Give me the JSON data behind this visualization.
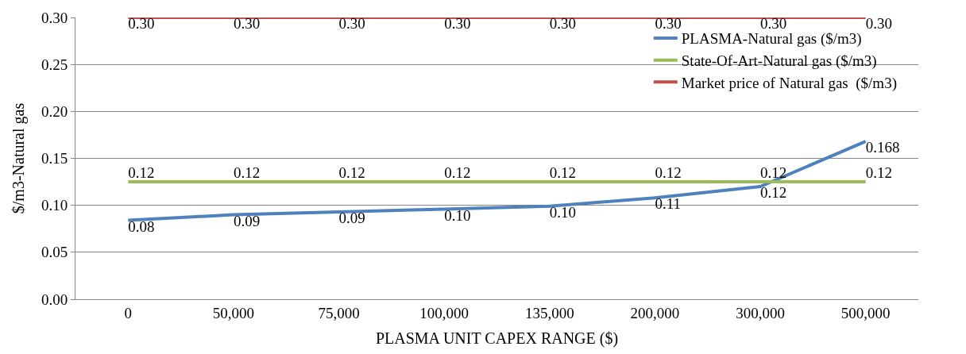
{
  "chart_data": {
    "type": "line",
    "xlabel": "PLASMA UNIT CAPEX RANGE ($)",
    "ylabel": "$/m3-Natural gas",
    "categories": [
      "0",
      "50,000",
      "75,000",
      "100,000",
      "135,000",
      "200,000",
      "300,000",
      "500,000"
    ],
    "series": [
      {
        "name": "PLASMA-Natural gas ($/m3)",
        "color": "#4f81bd",
        "values": [
          0.084,
          0.09,
          0.093,
          0.096,
          0.099,
          0.108,
          0.12,
          0.168
        ],
        "value_labels": [
          "0.08",
          "0.09",
          "0.09",
          "0.10",
          "0.10",
          "0.11",
          "0.12",
          "0.168"
        ]
      },
      {
        "name": "State-Of-Art-Natural gas ($/m3)",
        "color": "#9bbb59",
        "values": [
          0.125,
          0.125,
          0.125,
          0.125,
          0.125,
          0.125,
          0.125,
          0.125
        ],
        "value_labels": [
          "0.12",
          "0.12",
          "0.12",
          "0.12",
          "0.12",
          "0.12",
          "0.12",
          "0.12"
        ]
      },
      {
        "name": "Market price of Natural gas  ($/m3)",
        "color": "#c0504d",
        "values": [
          0.3,
          0.3,
          0.3,
          0.3,
          0.3,
          0.3,
          0.3,
          0.3
        ],
        "value_labels": [
          "0.30",
          "0.30",
          "0.30",
          "0.30",
          "0.30",
          "0.30",
          "0.30",
          "0.30"
        ]
      }
    ],
    "ylim": [
      0,
      0.3
    ],
    "yticks": [
      {
        "value": 0,
        "label": "0.00"
      },
      {
        "value": 0.05,
        "label": "0.05"
      },
      {
        "value": 0.1,
        "label": "0.10"
      },
      {
        "value": 0.15,
        "label": "0.15"
      },
      {
        "value": 0.2,
        "label": "0.20"
      },
      {
        "value": 0.25,
        "label": "0.25"
      },
      {
        "value": 0.3,
        "label": "0.30"
      }
    ],
    "grid": "y",
    "legend": "top right",
    "marker": "none",
    "line_style": "solid"
  }
}
